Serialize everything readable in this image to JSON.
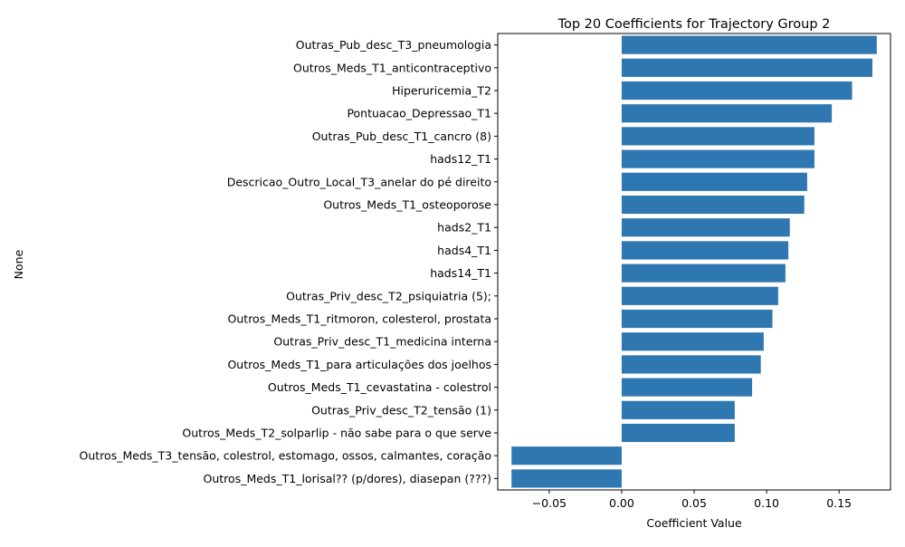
{
  "chart_data": {
    "type": "bar",
    "orientation": "horizontal",
    "title": "Top 20 Coefficients for Trajectory Group 2",
    "xlabel": "Coefficient Value",
    "ylabel": "None",
    "xlim": [
      -0.0855,
      0.1855
    ],
    "xticks": [
      -0.05,
      0.0,
      0.05,
      0.1,
      0.15
    ],
    "xtick_labels": [
      "−0.05",
      "0.00",
      "0.05",
      "0.10",
      "0.15"
    ],
    "grid": false,
    "bar_color": "#2f77b0",
    "categories": [
      "Outras_Pub_desc_T3_pneumologia",
      "Outros_Meds_T1_anticontraceptivo",
      "Hiperuricemia_T2",
      "Pontuacao_Depressao_T1",
      "Outras_Pub_desc_T1_cancro (8)",
      "hads12_T1",
      "Descricao_Outro_Local_T3_anelar do pé direito",
      "Outros_Meds_T1_osteoporose",
      "hads2_T1",
      "hads4_T1",
      "hads14_T1",
      "Outras_Priv_desc_T2_psiquiatria (5);",
      "Outros_Meds_T1_ritmoron, colesterol, prostata",
      "Outras_Priv_desc_T1_medicina interna",
      "Outros_Meds_T1_para articulações dos joelhos",
      "Outros_Meds_T1_cevastatina - colestrol",
      "Outras_Priv_desc_T2_tensão (1)",
      "Outros_Meds_T2_solparlip - não sabe para o que serve",
      "Outros_Meds_T3_tensão, colestrol, estomago, ossos, calmantes, coração",
      "Outros_Meds_T1_lorisal?? (p/dores), diasepan (???)"
    ],
    "values": [
      0.176,
      0.173,
      0.159,
      0.145,
      0.133,
      0.133,
      0.128,
      0.126,
      0.116,
      0.115,
      0.113,
      0.108,
      0.104,
      0.098,
      0.096,
      0.09,
      0.078,
      0.078,
      -0.076,
      -0.076
    ]
  }
}
